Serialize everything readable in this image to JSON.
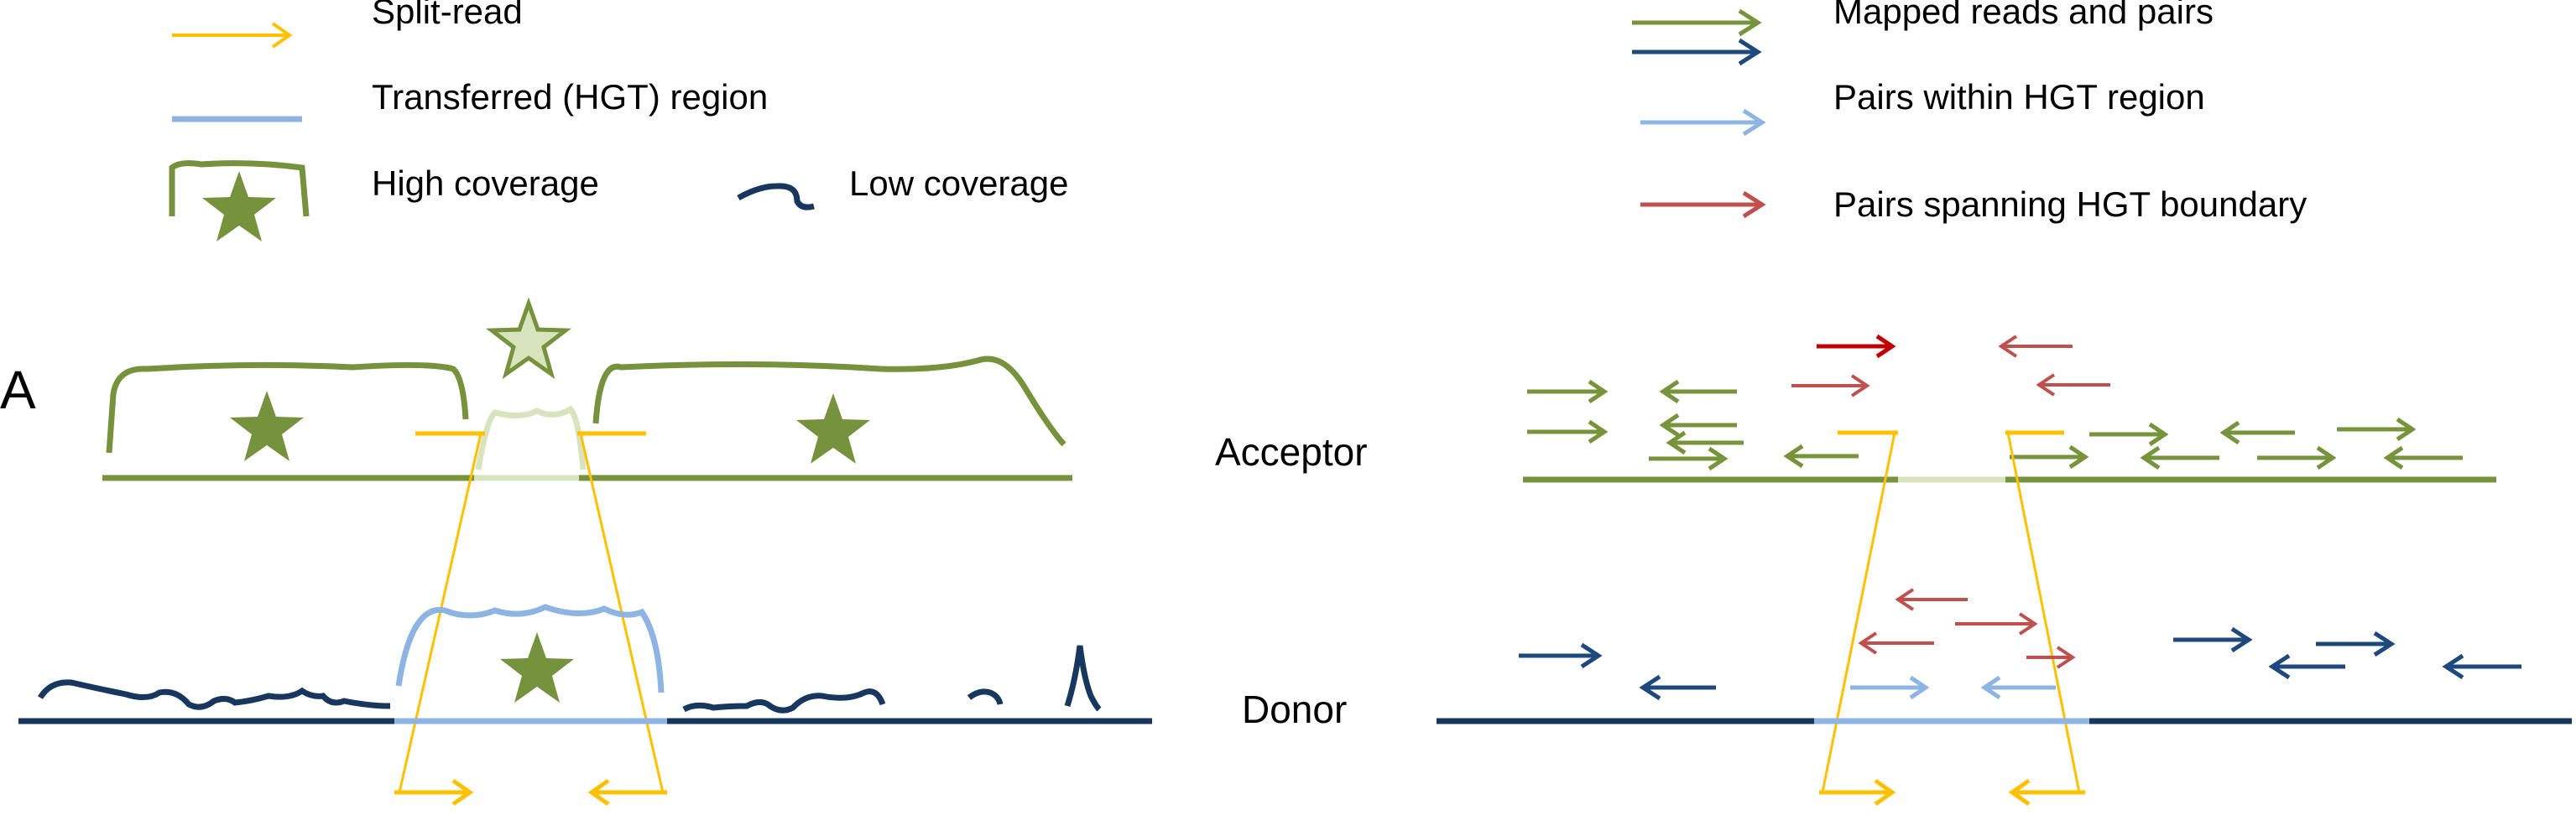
{
  "legend": {
    "split_read": "Split-read",
    "transferred_region": "Transferred (HGT) region",
    "high_coverage": "High coverage",
    "low_coverage": "Low coverage",
    "mapped_reads": "Mapped reads and pairs",
    "pairs_within": "Pairs within HGT region",
    "pairs_spanning": "Pairs spanning HGT boundary"
  },
  "panel": {
    "letter": "A",
    "acceptor": "Acceptor",
    "donor": "Donor"
  },
  "colors": {
    "split_read": "#FFC000",
    "hgt_region": "#8DB4E2",
    "high_coverage": "#76923C",
    "low_coverage": "#17375E",
    "mapped_green": "#77933C",
    "mapped_blue": "#1F497D",
    "pairs_within": "#8DB4E2",
    "pairs_spanning": "#C0504D",
    "acceptor_gap": "#D7E4BD"
  }
}
